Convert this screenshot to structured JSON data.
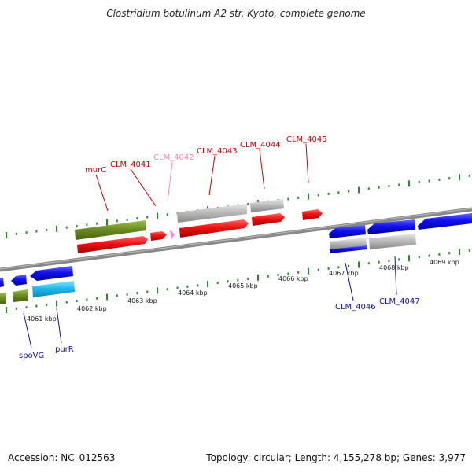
{
  "title": "Clostridium botulinum A2 str. Kyoto, complete genome",
  "footer": {
    "accession": "Accession: NC_012563",
    "summary": "Topology: circular; Length: 4,155,278 bp; Genes: 3,977"
  },
  "colors": {
    "forward_label": "#cc0000",
    "reverse_label": "#1010aa",
    "faint_label": "#ee88bb",
    "tick": "#2a8a2a",
    "backbone": "#888888",
    "cds_red": "#ee1111",
    "cds_blue": "#1010ee",
    "cds_green": "#6b8e23",
    "cds_grey": "#bbbbbb",
    "cds_cyan": "#22bbee",
    "cds_pink": "#ff88cc"
  },
  "ticks": [
    "4061 kbp",
    "4062 kbp",
    "4063 kbp",
    "4064 kbp",
    "4065 kbp",
    "4066 kbp",
    "4067 kbp",
    "4068 kbp",
    "4069 kbp"
  ],
  "top_labels": [
    "murC",
    "CLM_4041",
    "CLM_4042",
    "CLM_4043",
    "CLM_4044",
    "CLM_4045"
  ],
  "bottom_labels": [
    "spoVG",
    "purR",
    "CLM_4046",
    "CLM_4047"
  ]
}
